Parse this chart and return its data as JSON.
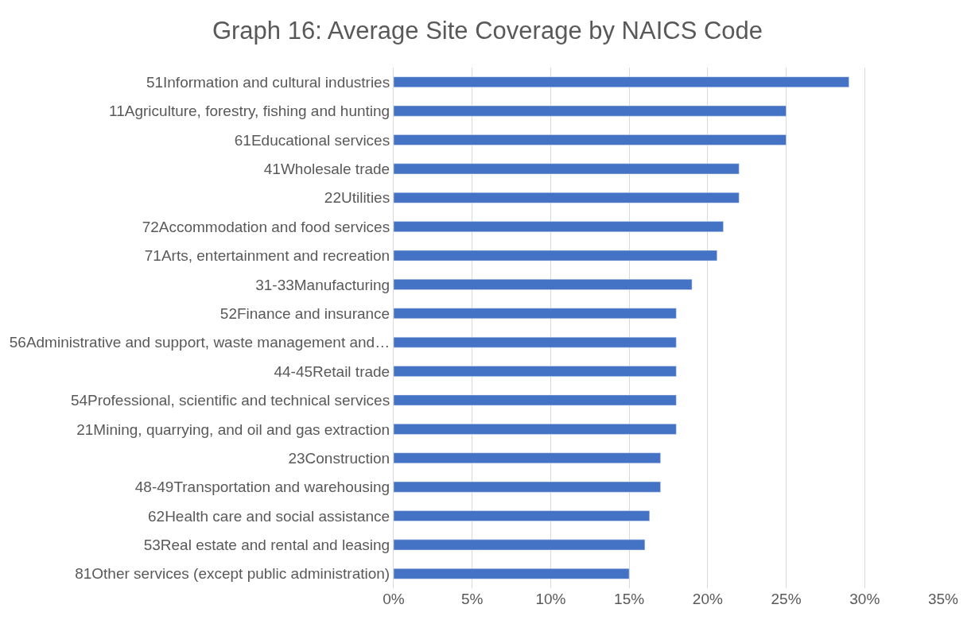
{
  "chart_data": {
    "type": "bar",
    "orientation": "horizontal",
    "title": "Graph 16: Average Site Coverage by NAICS Code",
    "categories": [
      "51Information and cultural industries",
      "11Agriculture, forestry, fishing and hunting",
      "61Educational services",
      "41Wholesale trade",
      "22Utilities",
      "72Accommodation and food services",
      "71Arts, entertainment and recreation",
      "31-33Manufacturing",
      "52Finance and insurance",
      "56Administrative and support, waste management and…",
      "44-45Retail trade",
      "54Professional, scientific and technical services",
      "21Mining, quarrying, and oil and gas extraction",
      "23Construction",
      "48-49Transportation and warehousing",
      "62Health care and social assistance",
      "53Real estate and rental and leasing",
      "81Other services (except public administration)"
    ],
    "values": [
      29,
      25,
      25,
      22,
      22,
      21,
      20.6,
      19,
      18,
      18,
      18,
      18,
      18,
      17,
      17,
      16.3,
      16,
      15
    ],
    "color": "#4472c4",
    "xlim": [
      0,
      35
    ],
    "xticks": [
      {
        "value": 0,
        "label": "0%"
      },
      {
        "value": 5,
        "label": "5%"
      },
      {
        "value": 10,
        "label": "10%"
      },
      {
        "value": 15,
        "label": "15%"
      },
      {
        "value": 20,
        "label": "20%"
      },
      {
        "value": 25,
        "label": "25%"
      },
      {
        "value": 30,
        "label": "30%"
      },
      {
        "value": 35,
        "label": "35%"
      }
    ],
    "grid": "x",
    "legend": false
  }
}
